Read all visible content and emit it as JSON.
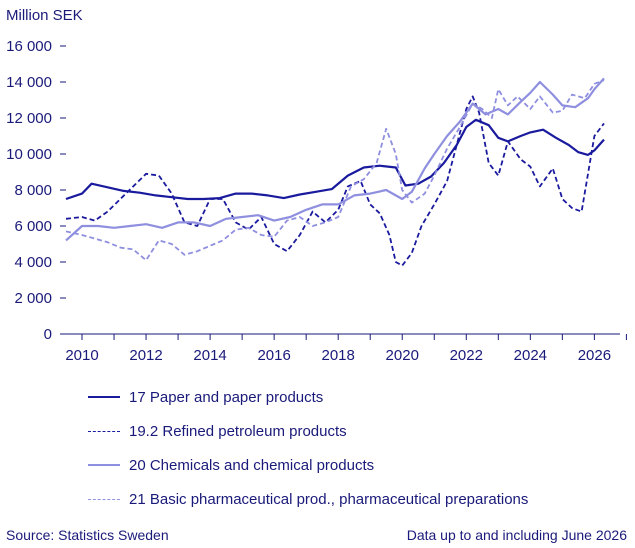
{
  "chart_data": {
    "type": "line",
    "ylabel": "Million SEK",
    "ylim": [
      0,
      16000
    ],
    "yticks": [
      0,
      2000,
      4000,
      6000,
      8000,
      10000,
      12000,
      14000,
      16000
    ],
    "ytick_labels": [
      "0",
      "2 000",
      "4 000",
      "6 000",
      "8 000",
      "10 000",
      "12 000",
      "14 000",
      "16 000"
    ],
    "xlim": [
      2009.5,
      2026.8
    ],
    "xticks": [
      2010,
      2012,
      2014,
      2016,
      2018,
      2020,
      2022,
      2024,
      2026
    ],
    "xtick_labels": [
      "2010",
      "2012",
      "2014",
      "2016",
      "2018",
      "2020",
      "2022",
      "2024",
      "2026"
    ],
    "grid": false,
    "legend_position": "bottom",
    "series": [
      {
        "name": "17 Paper and paper products",
        "style": "solid",
        "color": "#1a1a9e",
        "width": 2.2,
        "x": [
          2009.5,
          2010.0,
          2010.3,
          2010.8,
          2011.3,
          2011.8,
          2012.3,
          2012.8,
          2013.3,
          2013.8,
          2014.3,
          2014.8,
          2015.3,
          2015.8,
          2016.3,
          2016.8,
          2017.3,
          2017.8,
          2018.3,
          2018.8,
          2019.3,
          2019.8,
          2020.1,
          2020.5,
          2020.9,
          2021.3,
          2021.7,
          2022.0,
          2022.3,
          2022.7,
          2023.0,
          2023.3,
          2023.7,
          2024.0,
          2024.4,
          2024.8,
          2025.2,
          2025.5,
          2025.8,
          2026.0,
          2026.3
        ],
        "values": [
          7500,
          7800,
          8350,
          8150,
          7950,
          7850,
          7700,
          7600,
          7500,
          7500,
          7550,
          7800,
          7800,
          7700,
          7550,
          7750,
          7900,
          8050,
          8800,
          9250,
          9350,
          9250,
          8250,
          8350,
          8750,
          9500,
          10500,
          11500,
          11900,
          11600,
          10900,
          10700,
          11000,
          11200,
          11350,
          10900,
          10500,
          10100,
          9950,
          10200,
          10800
        ]
      },
      {
        "name": "19.2 Refined petroleum products",
        "style": "dashed",
        "color": "#1a1a9e",
        "width": 1.8,
        "x": [
          2009.5,
          2010.0,
          2010.4,
          2010.8,
          2011.2,
          2011.6,
          2012.0,
          2012.4,
          2012.8,
          2013.2,
          2013.6,
          2014.0,
          2014.4,
          2014.8,
          2015.2,
          2015.6,
          2016.0,
          2016.4,
          2016.8,
          2017.2,
          2017.6,
          2018.0,
          2018.3,
          2018.7,
          2019.0,
          2019.3,
          2019.6,
          2019.8,
          2020.0,
          2020.3,
          2020.6,
          2021.0,
          2021.4,
          2021.7,
          2022.0,
          2022.2,
          2022.4,
          2022.7,
          2023.0,
          2023.3,
          2023.7,
          2024.0,
          2024.3,
          2024.7,
          2025.0,
          2025.3,
          2025.6,
          2026.0,
          2026.3
        ],
        "values": [
          6400,
          6500,
          6300,
          6800,
          7500,
          8200,
          8900,
          8800,
          7800,
          6200,
          6000,
          7500,
          7500,
          6200,
          5800,
          6500,
          5000,
          4600,
          5500,
          6800,
          6200,
          6900,
          8200,
          8500,
          7200,
          6700,
          5500,
          4000,
          3800,
          4500,
          6000,
          7200,
          8500,
          10500,
          12500,
          13200,
          12300,
          9500,
          8800,
          10700,
          9700,
          9300,
          8200,
          9200,
          7500,
          7000,
          6800,
          11000,
          11700
        ]
      },
      {
        "name": "20 Chemicals and chemical products",
        "style": "solid",
        "color": "#8f8fe0",
        "width": 2.2,
        "x": [
          2009.5,
          2010.0,
          2010.5,
          2011.0,
          2011.5,
          2012.0,
          2012.5,
          2013.0,
          2013.5,
          2014.0,
          2014.5,
          2015.0,
          2015.5,
          2016.0,
          2016.5,
          2017.0,
          2017.5,
          2018.0,
          2018.5,
          2019.0,
          2019.5,
          2020.0,
          2020.3,
          2020.7,
          2021.0,
          2021.4,
          2021.8,
          2022.2,
          2022.6,
          2023.0,
          2023.3,
          2023.7,
          2024.0,
          2024.3,
          2024.7,
          2025.0,
          2025.4,
          2025.8,
          2026.0,
          2026.3
        ],
        "values": [
          5200,
          6000,
          6000,
          5900,
          6000,
          6100,
          5900,
          6200,
          6200,
          6000,
          6400,
          6500,
          6600,
          6300,
          6500,
          6900,
          7200,
          7200,
          7700,
          7800,
          8000,
          7500,
          7900,
          9200,
          10000,
          11000,
          11800,
          12800,
          12200,
          12500,
          12200,
          12900,
          13400,
          14000,
          13300,
          12700,
          12600,
          13100,
          13600,
          14200
        ]
      },
      {
        "name": "21 Basic pharmaceutical prod., pharmaceutical preparations",
        "style": "dashed",
        "color": "#8f8fe0",
        "width": 1.8,
        "x": [
          2009.5,
          2010.0,
          2010.4,
          2010.8,
          2011.2,
          2011.6,
          2012.0,
          2012.4,
          2012.8,
          2013.2,
          2013.6,
          2014.0,
          2014.4,
          2014.8,
          2015.2,
          2015.6,
          2016.0,
          2016.4,
          2016.8,
          2017.2,
          2017.6,
          2018.0,
          2018.4,
          2018.8,
          2019.2,
          2019.5,
          2019.8,
          2020.0,
          2020.3,
          2020.7,
          2021.0,
          2021.4,
          2021.8,
          2022.2,
          2022.5,
          2022.8,
          2023.0,
          2023.3,
          2023.6,
          2024.0,
          2024.3,
          2024.7,
          2025.0,
          2025.3,
          2025.7,
          2026.0,
          2026.3
        ],
        "values": [
          5700,
          5500,
          5300,
          5100,
          4800,
          4700,
          4100,
          5200,
          5000,
          4400,
          4600,
          4900,
          5200,
          5800,
          5900,
          5500,
          5400,
          6300,
          6500,
          6000,
          6200,
          6500,
          8200,
          8600,
          9500,
          11400,
          10000,
          8000,
          7300,
          7800,
          8800,
          10300,
          11500,
          12800,
          12500,
          12000,
          13600,
          12700,
          13200,
          12500,
          13200,
          12300,
          12400,
          13300,
          13100,
          13900,
          14100
        ]
      }
    ]
  },
  "footer": {
    "source": "Source: Statistics Sweden",
    "note": "Data up to and including June 2026"
  }
}
